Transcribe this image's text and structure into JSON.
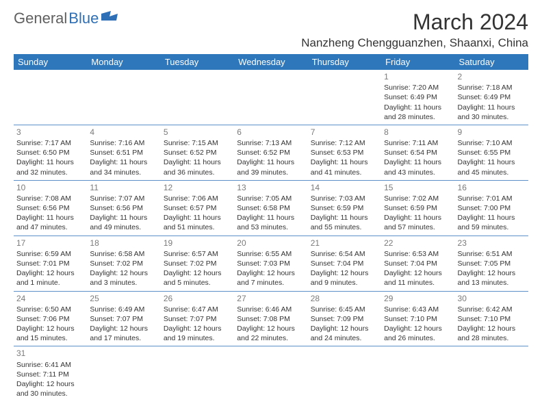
{
  "logo": {
    "text1": "General",
    "text2": "Blue"
  },
  "title": "March 2024",
  "location": "Nanzheng Chengguanzhen, Shaanxi, China",
  "day_headers": [
    "Sunday",
    "Monday",
    "Tuesday",
    "Wednesday",
    "Thursday",
    "Friday",
    "Saturday"
  ],
  "colors": {
    "header_bg": "#2e77bb",
    "header_fg": "#ffffff",
    "cell_border": "#5a8fc7",
    "daynum": "#7a7a7a",
    "text": "#333333",
    "logo_gray": "#606060",
    "logo_blue": "#2e6fb5",
    "background": "#ffffff"
  },
  "weeks": [
    [
      null,
      null,
      null,
      null,
      null,
      {
        "n": "1",
        "l": [
          "Sunrise: 7:20 AM",
          "Sunset: 6:49 PM",
          "Daylight: 11 hours",
          "and 28 minutes."
        ]
      },
      {
        "n": "2",
        "l": [
          "Sunrise: 7:18 AM",
          "Sunset: 6:49 PM",
          "Daylight: 11 hours",
          "and 30 minutes."
        ]
      }
    ],
    [
      {
        "n": "3",
        "l": [
          "Sunrise: 7:17 AM",
          "Sunset: 6:50 PM",
          "Daylight: 11 hours",
          "and 32 minutes."
        ]
      },
      {
        "n": "4",
        "l": [
          "Sunrise: 7:16 AM",
          "Sunset: 6:51 PM",
          "Daylight: 11 hours",
          "and 34 minutes."
        ]
      },
      {
        "n": "5",
        "l": [
          "Sunrise: 7:15 AM",
          "Sunset: 6:52 PM",
          "Daylight: 11 hours",
          "and 36 minutes."
        ]
      },
      {
        "n": "6",
        "l": [
          "Sunrise: 7:13 AM",
          "Sunset: 6:52 PM",
          "Daylight: 11 hours",
          "and 39 minutes."
        ]
      },
      {
        "n": "7",
        "l": [
          "Sunrise: 7:12 AM",
          "Sunset: 6:53 PM",
          "Daylight: 11 hours",
          "and 41 minutes."
        ]
      },
      {
        "n": "8",
        "l": [
          "Sunrise: 7:11 AM",
          "Sunset: 6:54 PM",
          "Daylight: 11 hours",
          "and 43 minutes."
        ]
      },
      {
        "n": "9",
        "l": [
          "Sunrise: 7:10 AM",
          "Sunset: 6:55 PM",
          "Daylight: 11 hours",
          "and 45 minutes."
        ]
      }
    ],
    [
      {
        "n": "10",
        "l": [
          "Sunrise: 7:08 AM",
          "Sunset: 6:56 PM",
          "Daylight: 11 hours",
          "and 47 minutes."
        ]
      },
      {
        "n": "11",
        "l": [
          "Sunrise: 7:07 AM",
          "Sunset: 6:56 PM",
          "Daylight: 11 hours",
          "and 49 minutes."
        ]
      },
      {
        "n": "12",
        "l": [
          "Sunrise: 7:06 AM",
          "Sunset: 6:57 PM",
          "Daylight: 11 hours",
          "and 51 minutes."
        ]
      },
      {
        "n": "13",
        "l": [
          "Sunrise: 7:05 AM",
          "Sunset: 6:58 PM",
          "Daylight: 11 hours",
          "and 53 minutes."
        ]
      },
      {
        "n": "14",
        "l": [
          "Sunrise: 7:03 AM",
          "Sunset: 6:59 PM",
          "Daylight: 11 hours",
          "and 55 minutes."
        ]
      },
      {
        "n": "15",
        "l": [
          "Sunrise: 7:02 AM",
          "Sunset: 6:59 PM",
          "Daylight: 11 hours",
          "and 57 minutes."
        ]
      },
      {
        "n": "16",
        "l": [
          "Sunrise: 7:01 AM",
          "Sunset: 7:00 PM",
          "Daylight: 11 hours",
          "and 59 minutes."
        ]
      }
    ],
    [
      {
        "n": "17",
        "l": [
          "Sunrise: 6:59 AM",
          "Sunset: 7:01 PM",
          "Daylight: 12 hours",
          "and 1 minute."
        ]
      },
      {
        "n": "18",
        "l": [
          "Sunrise: 6:58 AM",
          "Sunset: 7:02 PM",
          "Daylight: 12 hours",
          "and 3 minutes."
        ]
      },
      {
        "n": "19",
        "l": [
          "Sunrise: 6:57 AM",
          "Sunset: 7:02 PM",
          "Daylight: 12 hours",
          "and 5 minutes."
        ]
      },
      {
        "n": "20",
        "l": [
          "Sunrise: 6:55 AM",
          "Sunset: 7:03 PM",
          "Daylight: 12 hours",
          "and 7 minutes."
        ]
      },
      {
        "n": "21",
        "l": [
          "Sunrise: 6:54 AM",
          "Sunset: 7:04 PM",
          "Daylight: 12 hours",
          "and 9 minutes."
        ]
      },
      {
        "n": "22",
        "l": [
          "Sunrise: 6:53 AM",
          "Sunset: 7:04 PM",
          "Daylight: 12 hours",
          "and 11 minutes."
        ]
      },
      {
        "n": "23",
        "l": [
          "Sunrise: 6:51 AM",
          "Sunset: 7:05 PM",
          "Daylight: 12 hours",
          "and 13 minutes."
        ]
      }
    ],
    [
      {
        "n": "24",
        "l": [
          "Sunrise: 6:50 AM",
          "Sunset: 7:06 PM",
          "Daylight: 12 hours",
          "and 15 minutes."
        ]
      },
      {
        "n": "25",
        "l": [
          "Sunrise: 6:49 AM",
          "Sunset: 7:07 PM",
          "Daylight: 12 hours",
          "and 17 minutes."
        ]
      },
      {
        "n": "26",
        "l": [
          "Sunrise: 6:47 AM",
          "Sunset: 7:07 PM",
          "Daylight: 12 hours",
          "and 19 minutes."
        ]
      },
      {
        "n": "27",
        "l": [
          "Sunrise: 6:46 AM",
          "Sunset: 7:08 PM",
          "Daylight: 12 hours",
          "and 22 minutes."
        ]
      },
      {
        "n": "28",
        "l": [
          "Sunrise: 6:45 AM",
          "Sunset: 7:09 PM",
          "Daylight: 12 hours",
          "and 24 minutes."
        ]
      },
      {
        "n": "29",
        "l": [
          "Sunrise: 6:43 AM",
          "Sunset: 7:10 PM",
          "Daylight: 12 hours",
          "and 26 minutes."
        ]
      },
      {
        "n": "30",
        "l": [
          "Sunrise: 6:42 AM",
          "Sunset: 7:10 PM",
          "Daylight: 12 hours",
          "and 28 minutes."
        ]
      }
    ],
    [
      {
        "n": "31",
        "l": [
          "Sunrise: 6:41 AM",
          "Sunset: 7:11 PM",
          "Daylight: 12 hours",
          "and 30 minutes."
        ]
      },
      null,
      null,
      null,
      null,
      null,
      null
    ]
  ]
}
